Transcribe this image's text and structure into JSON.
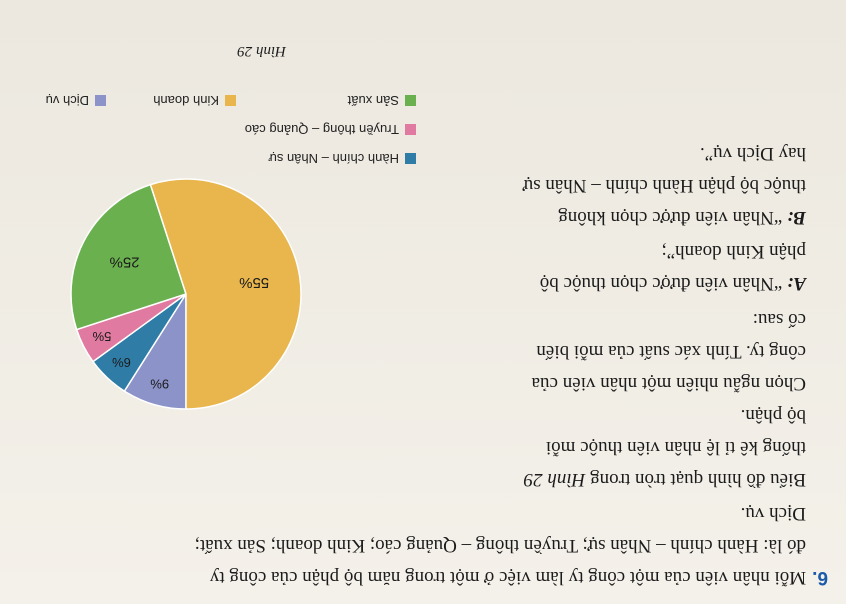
{
  "problem": {
    "number": "6.",
    "line1": "Mỗi nhân viên của một công ty làm việc ở một trong năm bộ phận của công ty",
    "line2": "đó là: Hành chính – Nhân sự; Truyền thông – Quảng cáo; Kinh doanh; Sản xuất;",
    "line3": "Dịch vụ.",
    "left_lines": [
      "Biểu đồ hình quạt tròn trong ",
      "thống kê tỉ lệ nhân viên thuộc mỗi",
      "bộ phận.",
      "Chọn ngẫu nhiên một nhân viên của",
      "công ty. Tính xác suất của mỗi biến",
      "cố sau:"
    ],
    "figure_ref": "Hình 29",
    "eventA_label": "A:",
    "eventA_line1": "“Nhân viên được chọn thuộc bộ",
    "eventA_line2": "phận Kinh doanh”;",
    "eventB_label": "B:",
    "eventB_line1": "“Nhân viên được chọn không",
    "eventB_line2": "thuộc bộ phận Hành chính – Nhân sự",
    "eventB_line3": "hay Dịch vụ”."
  },
  "figure_caption": "Hình 29",
  "colors": {
    "hanh_chinh": "#2f7da6",
    "truyen_thong": "#e07aa0",
    "kinh_doanh": "#e8b64c",
    "san_xuat": "#6bb04f",
    "dich_vu": "#8c93c9"
  },
  "chart_data": {
    "type": "pie",
    "slices": [
      {
        "name": "Dịch vụ",
        "value": 9,
        "label": "9%"
      },
      {
        "name": "Hành chính – Nhân sự",
        "value": 6,
        "label": "6%"
      },
      {
        "name": "Truyền thông – Quảng cáo",
        "value": 5,
        "label": "5%"
      },
      {
        "name": "Sản xuất",
        "value": 25,
        "label": "25%"
      },
      {
        "name": "Kinh doanh",
        "value": 55,
        "label": "55%"
      }
    ],
    "legend": [
      {
        "label": "Hành chính – Nhân sự",
        "color": "#2f7da6"
      },
      {
        "label": "Truyền thông – Quảng cáo",
        "color": "#e07aa0"
      },
      {
        "label": "Sản xuất",
        "color": "#6bb04f"
      },
      {
        "label": "Kinh doanh",
        "color": "#e8b64c"
      },
      {
        "label": "Dịch vụ",
        "color": "#8c93c9"
      }
    ],
    "legend_placement": "bottom"
  }
}
